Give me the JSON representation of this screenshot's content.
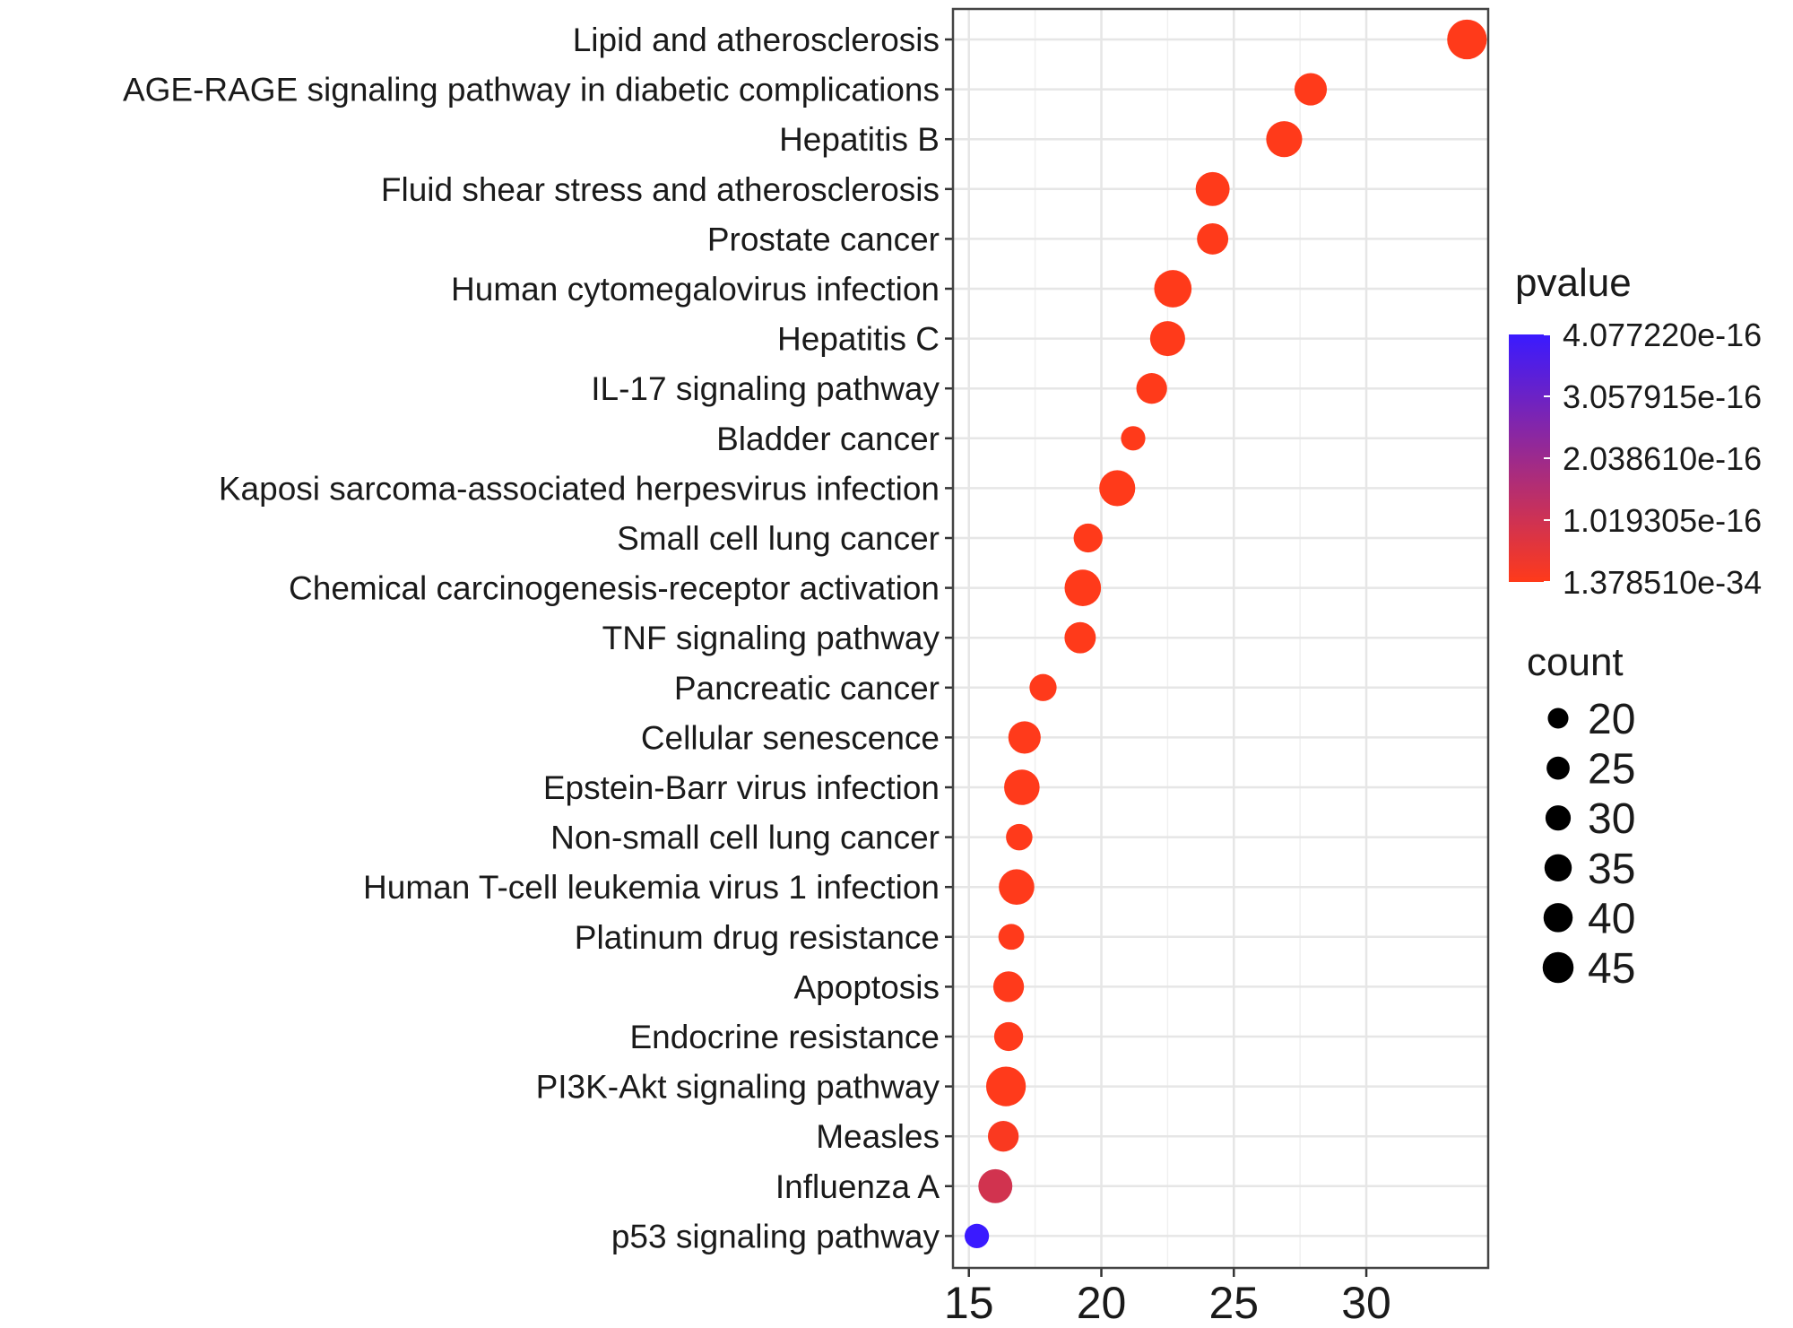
{
  "chart_data": {
    "type": "scatter",
    "title": "",
    "xlabel": "",
    "ylabel": "",
    "xlim": [
      14.4,
      34.6
    ],
    "xticks": [
      "15",
      "20",
      "25",
      "30"
    ],
    "xtick_values": [
      15,
      20,
      25,
      30
    ],
    "points": [
      {
        "label": "Lipid and atherosclerosis",
        "x": 33.8,
        "count": 45,
        "pvalue": 1.4e-34
      },
      {
        "label": "AGE-RAGE signaling pathway in diabetic complications",
        "x": 27.9,
        "count": 30,
        "pvalue": 1e-30
      },
      {
        "label": "Hepatitis B",
        "x": 26.9,
        "count": 37,
        "pvalue": 1e-30
      },
      {
        "label": "Fluid shear stress and atherosclerosis",
        "x": 24.2,
        "count": 33,
        "pvalue": 1e-28
      },
      {
        "label": "Prostate cancer",
        "x": 24.2,
        "count": 28,
        "pvalue": 1e-26
      },
      {
        "label": "Human cytomegalovirus infection",
        "x": 22.7,
        "count": 40,
        "pvalue": 1e-25
      },
      {
        "label": "Hepatitis C",
        "x": 22.5,
        "count": 35,
        "pvalue": 1e-25
      },
      {
        "label": "IL-17 signaling pathway",
        "x": 21.9,
        "count": 27,
        "pvalue": 1e-22
      },
      {
        "label": "Bladder cancer",
        "x": 21.2,
        "count": 17,
        "pvalue": 1e-20
      },
      {
        "label": "Kaposi sarcoma-associated herpesvirus infection",
        "x": 20.6,
        "count": 37,
        "pvalue": 1e-20
      },
      {
        "label": "Small cell lung cancer",
        "x": 19.5,
        "count": 24,
        "pvalue": 1e-19
      },
      {
        "label": "Chemical carcinogenesis-receptor activation",
        "x": 19.3,
        "count": 38,
        "pvalue": 1e-19
      },
      {
        "label": "TNF signaling pathway",
        "x": 19.2,
        "count": 28,
        "pvalue": 1e-19
      },
      {
        "label": "Pancreatic cancer",
        "x": 17.8,
        "count": 21,
        "pvalue": 1e-18
      },
      {
        "label": "Cellular senescence",
        "x": 17.1,
        "count": 30,
        "pvalue": 1e-18
      },
      {
        "label": "Epstein-Barr virus infection",
        "x": 17.0,
        "count": 36,
        "pvalue": 1e-18
      },
      {
        "label": "Non-small cell lung cancer",
        "x": 16.9,
        "count": 20,
        "pvalue": 1e-18
      },
      {
        "label": "Human T-cell leukemia virus 1 infection",
        "x": 16.8,
        "count": 36,
        "pvalue": 1e-18
      },
      {
        "label": "Platinum drug resistance",
        "x": 16.6,
        "count": 19,
        "pvalue": 1e-18
      },
      {
        "label": "Apoptosis",
        "x": 16.5,
        "count": 27,
        "pvalue": 1e-18
      },
      {
        "label": "Endocrine resistance",
        "x": 16.5,
        "count": 24,
        "pvalue": 1e-18
      },
      {
        "label": "PI3K-Akt signaling pathway",
        "x": 16.4,
        "count": 45,
        "pvalue": 1e-18
      },
      {
        "label": "Measles",
        "x": 16.3,
        "count": 27,
        "pvalue": 1e-17
      },
      {
        "label": "Influenza A",
        "x": 16.0,
        "count": 33,
        "pvalue": 9.5e-17
      },
      {
        "label": "p53 signaling pathway",
        "x": 15.3,
        "count": 17,
        "pvalue": 4.08e-16
      }
    ],
    "color_legend": {
      "title": "pvalue",
      "low_color": "#ff3a1a",
      "high_color": "#3a1aff",
      "min": 1.37851e-34,
      "max": 4.07722e-16,
      "tick_labels": [
        "4.077220e-16",
        "3.057915e-16",
        "2.038610e-16",
        "1.019305e-16",
        "1.378510e-34"
      ],
      "tick_values": [
        4.07722e-16,
        3.057915e-16,
        2.03861e-16,
        1.019305e-16,
        1.37851e-34
      ]
    },
    "size_legend": {
      "title": "count",
      "items": [
        {
          "label": "20",
          "value": 20
        },
        {
          "label": "25",
          "value": 25
        },
        {
          "label": "30",
          "value": 30
        },
        {
          "label": "35",
          "value": 35
        },
        {
          "label": "40",
          "value": 40
        },
        {
          "label": "45",
          "value": 45
        }
      ]
    }
  }
}
